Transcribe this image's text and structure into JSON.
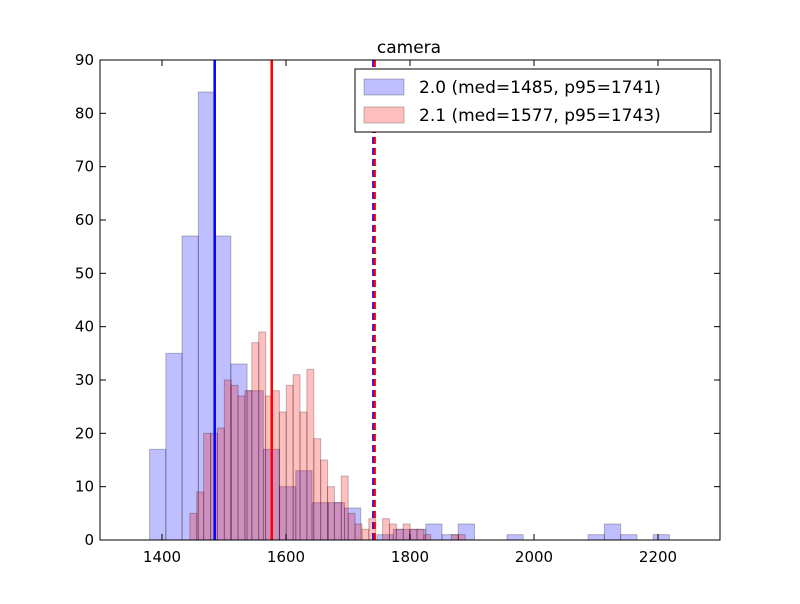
{
  "chart_data": {
    "type": "histogram",
    "title": "camera",
    "xlabel": "",
    "ylabel": "",
    "xlim": [
      1300,
      2300
    ],
    "ylim": [
      0,
      90
    ],
    "xticks": [
      1400,
      1600,
      1800,
      2000,
      2200
    ],
    "yticks": [
      0,
      10,
      20,
      30,
      40,
      50,
      60,
      70,
      80,
      90
    ],
    "grid": false,
    "legend_position": "top-right",
    "series": [
      {
        "name": "2.0 (med=1485, p95=1741)",
        "color": "#0000ff",
        "bin_width": 26.2,
        "bins": [
          {
            "x": 1380.0,
            "count": 17
          },
          {
            "x": 1406.2,
            "count": 35
          },
          {
            "x": 1432.4,
            "count": 57
          },
          {
            "x": 1458.6,
            "count": 84
          },
          {
            "x": 1484.8,
            "count": 57
          },
          {
            "x": 1511.0,
            "count": 33
          },
          {
            "x": 1537.2,
            "count": 28
          },
          {
            "x": 1563.4,
            "count": 17
          },
          {
            "x": 1589.6,
            "count": 10
          },
          {
            "x": 1615.8,
            "count": 13
          },
          {
            "x": 1642.0,
            "count": 7
          },
          {
            "x": 1668.2,
            "count": 7
          },
          {
            "x": 1694.4,
            "count": 6
          },
          {
            "x": 1720.6,
            "count": 0
          },
          {
            "x": 1746.8,
            "count": 1
          },
          {
            "x": 1773.0,
            "count": 2
          },
          {
            "x": 1799.2,
            "count": 2
          },
          {
            "x": 1825.4,
            "count": 3
          },
          {
            "x": 1851.6,
            "count": 1
          },
          {
            "x": 1877.8,
            "count": 3
          },
          {
            "x": 1904.0,
            "count": 0
          },
          {
            "x": 1930.2,
            "count": 0
          },
          {
            "x": 1956.4,
            "count": 1
          },
          {
            "x": 1982.6,
            "count": 0
          },
          {
            "x": 2008.8,
            "count": 0
          },
          {
            "x": 2035.0,
            "count": 0
          },
          {
            "x": 2061.2,
            "count": 0
          },
          {
            "x": 2087.4,
            "count": 1
          },
          {
            "x": 2113.6,
            "count": 3
          },
          {
            "x": 2139.8,
            "count": 1
          },
          {
            "x": 2166.0,
            "count": 0
          },
          {
            "x": 2192.2,
            "count": 1
          }
        ],
        "median": 1485,
        "p95": 1741
      },
      {
        "name": "2.1 (med=1577, p95=1743)",
        "color": "#ff0000",
        "bin_width": 11.1,
        "bins": [
          {
            "x": 1445.0,
            "count": 5
          },
          {
            "x": 1456.1,
            "count": 9
          },
          {
            "x": 1467.2,
            "count": 20
          },
          {
            "x": 1478.3,
            "count": 20
          },
          {
            "x": 1489.4,
            "count": 21
          },
          {
            "x": 1500.5,
            "count": 30
          },
          {
            "x": 1511.6,
            "count": 29
          },
          {
            "x": 1522.7,
            "count": 27
          },
          {
            "x": 1533.8,
            "count": 28
          },
          {
            "x": 1544.9,
            "count": 37
          },
          {
            "x": 1556.0,
            "count": 39
          },
          {
            "x": 1567.1,
            "count": 27
          },
          {
            "x": 1578.2,
            "count": 28
          },
          {
            "x": 1589.3,
            "count": 24
          },
          {
            "x": 1600.4,
            "count": 29
          },
          {
            "x": 1611.5,
            "count": 31
          },
          {
            "x": 1622.6,
            "count": 24
          },
          {
            "x": 1633.7,
            "count": 32
          },
          {
            "x": 1644.8,
            "count": 19
          },
          {
            "x": 1655.9,
            "count": 15
          },
          {
            "x": 1667.0,
            "count": 10
          },
          {
            "x": 1678.1,
            "count": 7
          },
          {
            "x": 1689.2,
            "count": 12
          },
          {
            "x": 1700.3,
            "count": 5
          },
          {
            "x": 1711.4,
            "count": 3
          },
          {
            "x": 1722.5,
            "count": 2
          },
          {
            "x": 1733.6,
            "count": 4
          },
          {
            "x": 1744.7,
            "count": 0
          },
          {
            "x": 1755.8,
            "count": 4
          },
          {
            "x": 1766.9,
            "count": 3
          },
          {
            "x": 1778.0,
            "count": 2
          },
          {
            "x": 1789.1,
            "count": 3
          },
          {
            "x": 1800.2,
            "count": 2
          },
          {
            "x": 1811.3,
            "count": 2
          },
          {
            "x": 1822.4,
            "count": 1
          },
          {
            "x": 1833.5,
            "count": 0
          },
          {
            "x": 1844.6,
            "count": 0
          },
          {
            "x": 1855.7,
            "count": 0
          },
          {
            "x": 1866.8,
            "count": 1
          },
          {
            "x": 1877.9,
            "count": 1
          }
        ],
        "median": 1577,
        "p95": 1743
      }
    ],
    "reference_lines": [
      {
        "series": "2.0 (med=1485, p95=1741)",
        "kind": "median",
        "x": 1485,
        "style": "solid",
        "color": "#0000ff"
      },
      {
        "series": "2.1 (med=1577, p95=1743)",
        "kind": "median",
        "x": 1577,
        "style": "solid",
        "color": "#ff0000"
      },
      {
        "series": "2.0 (med=1485, p95=1741)",
        "kind": "p95",
        "x": 1741,
        "style": "dashed",
        "color": "#0000ff"
      },
      {
        "series": "2.1 (med=1577, p95=1743)",
        "kind": "p95",
        "x": 1743,
        "style": "dashed",
        "color": "#ff0000"
      }
    ]
  }
}
